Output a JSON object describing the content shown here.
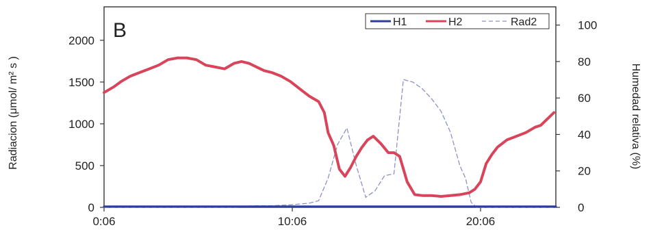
{
  "chart_data": {
    "type": "line",
    "panel_label": "B",
    "ylabel_left": "Radiacion (μmol/ m² s )",
    "ylabel_right": "Humedad relativa (%)",
    "x_ticks": [
      "0:06",
      "10:06",
      "20:06"
    ],
    "x_tick_hours": [
      0.1,
      10.1,
      20.1
    ],
    "xlim": [
      0.1,
      24.1
    ],
    "ylim_left": [
      0,
      2400
    ],
    "yticks_left": [
      "0",
      "500",
      "1000",
      "1500",
      "2000"
    ],
    "ylim_right": [
      0,
      110
    ],
    "yticks_right": [
      "0",
      "20",
      "40",
      "60",
      "80",
      "100"
    ],
    "grid": false,
    "legend_position": "top-right",
    "series": [
      {
        "name": "H1",
        "axis": "right",
        "color": "#2b3f9e",
        "style": "solid",
        "x": [
          0.1,
          24.1
        ],
        "y": [
          0.5,
          0.5
        ]
      },
      {
        "name": "H2",
        "axis": "right",
        "color": "#d8445a",
        "style": "solid",
        "x": [
          0.1,
          0.6,
          1.0,
          1.5,
          2.0,
          2.5,
          3.0,
          3.5,
          4.0,
          4.5,
          5.0,
          5.5,
          6.0,
          6.5,
          7.0,
          7.4,
          7.8,
          8.2,
          8.6,
          9.0,
          9.5,
          10.0,
          10.5,
          11.0,
          11.5,
          11.8,
          12.0,
          12.3,
          12.6,
          12.9,
          13.2,
          13.5,
          13.8,
          14.1,
          14.4,
          14.8,
          15.2,
          15.5,
          15.8,
          16.2,
          16.6,
          17.0,
          17.5,
          18.0,
          18.5,
          19.0,
          19.5,
          19.8,
          20.1,
          20.4,
          20.7,
          21.0,
          21.5,
          22.0,
          22.5,
          23.0,
          23.3,
          23.6,
          24.0
        ],
        "y": [
          63,
          66,
          69,
          72,
          74,
          76,
          78,
          81,
          82,
          82,
          81,
          78,
          77,
          76,
          79,
          80,
          79,
          77,
          75,
          74,
          72,
          69,
          65,
          61,
          58,
          52,
          41,
          34,
          21,
          17,
          22,
          28,
          33,
          37,
          39,
          35,
          30,
          30,
          28,
          14,
          7,
          6.5,
          6.5,
          6,
          6.5,
          7,
          8,
          10,
          14,
          24,
          29,
          33,
          37,
          39,
          41,
          44,
          45,
          48,
          52
        ]
      },
      {
        "name": "Rad2",
        "axis": "left",
        "color": "#8a92c4",
        "style": "dashed",
        "x": [
          0.1,
          4.0,
          7.0,
          8.0,
          9.0,
          10.0,
          11.0,
          11.5,
          12.0,
          12.5,
          13.0,
          13.5,
          14.0,
          14.5,
          15.0,
          15.5,
          16.0,
          16.5,
          17.0,
          17.5,
          18.0,
          18.5,
          19.0,
          19.3,
          19.6,
          19.9,
          20.2,
          21.0,
          24.1
        ],
        "y": [
          0,
          0,
          0,
          20,
          20,
          30,
          50,
          80,
          350,
          750,
          950,
          500,
          120,
          200,
          380,
          400,
          1530,
          1500,
          1420,
          1300,
          1150,
          900,
          500,
          350,
          60,
          0,
          0,
          0,
          0
        ]
      }
    ]
  }
}
